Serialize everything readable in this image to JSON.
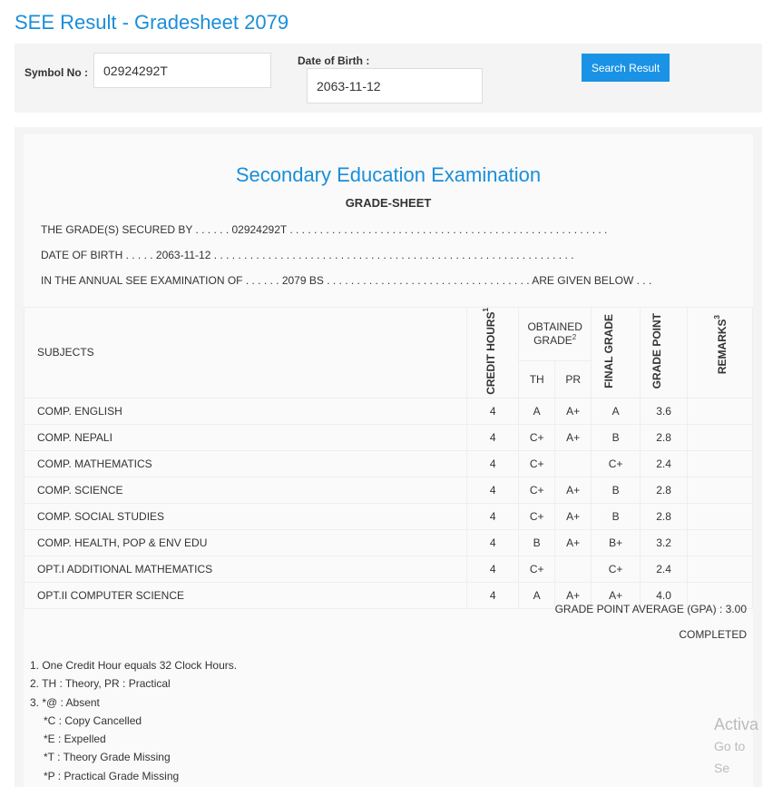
{
  "title": "SEE Result - Gradesheet 2079",
  "search": {
    "symbol_label": "Symbol No :",
    "symbol_value": "02924292T",
    "dob_label": "Date of Birth :",
    "dob_value": "2063-11-12",
    "button": "Search Result"
  },
  "sheet": {
    "exam": "Secondary Education Examination",
    "heading": "GRADE-SHEET",
    "line1": "THE GRADE(S) SECURED BY . . . . . . 02924292T . . . . . . . . . . . . . . . . . . . . . . . . . . . . . . . . . . . . . . . . . . . . . . . . . . . . .",
    "line2": "DATE OF BIRTH . . . . . 2063-11-12 . . . . . . . . . . . . . . . . . . . . . . . . . . . . . . . . . . . . . . . . . . . . . . . . . . . . . . . . . . . .",
    "line3": "IN THE ANNUAL SEE EXAMINATION OF . . . . . . 2079 BS . . . . . . . . . . . . . . . . . . . . . . . . . . . . . . . . . . ARE GIVEN BELOW . . .",
    "headers": {
      "subjects": "SUBJECTS",
      "credit": "CREDIT HOURS",
      "credit_sup": "1",
      "obtained": "OBTAINED GRADE",
      "obtained_sup": "2",
      "th": "TH",
      "pr": "PR",
      "final": "FINAL GRADE",
      "point": "GRADE POINT",
      "remarks": "REMARKS",
      "remarks_sup": "3"
    },
    "rows": [
      {
        "subject": "COMP. ENGLISH",
        "credit": "4",
        "th": "A",
        "pr": "A+",
        "final": "A",
        "point": "3.6",
        "remarks": ""
      },
      {
        "subject": "COMP. NEPALI",
        "credit": "4",
        "th": "C+",
        "pr": "A+",
        "final": "B",
        "point": "2.8",
        "remarks": ""
      },
      {
        "subject": "COMP. MATHEMATICS",
        "credit": "4",
        "th": "C+",
        "pr": "",
        "final": "C+",
        "point": "2.4",
        "remarks": ""
      },
      {
        "subject": "COMP. SCIENCE",
        "credit": "4",
        "th": "C+",
        "pr": "A+",
        "final": "B",
        "point": "2.8",
        "remarks": ""
      },
      {
        "subject": "COMP. SOCIAL STUDIES",
        "credit": "4",
        "th": "C+",
        "pr": "A+",
        "final": "B",
        "point": "2.8",
        "remarks": ""
      },
      {
        "subject": "COMP. HEALTH, POP & ENV EDU",
        "credit": "4",
        "th": "B",
        "pr": "A+",
        "final": "B+",
        "point": "3.2",
        "remarks": ""
      },
      {
        "subject": "OPT.I ADDITIONAL MATHEMATICS",
        "credit": "4",
        "th": "C+",
        "pr": "",
        "final": "C+",
        "point": "2.4",
        "remarks": ""
      },
      {
        "subject": "OPT.II COMPUTER SCIENCE",
        "credit": "4",
        "th": "A",
        "pr": "A+",
        "final": "A+",
        "point": "4.0",
        "remarks": ""
      }
    ],
    "gpa": "GRADE POINT AVERAGE (GPA) : 3.00",
    "status": "COMPLETED",
    "notes": [
      "1. One Credit Hour equals 32 Clock Hours.",
      "2. TH : Theory, PR : Practical",
      "3. *@ : Absent",
      "*C : Copy Cancelled",
      "*E : Expelled",
      "*T : Theory Grade Missing",
      "*P : Practical Grade Missing"
    ]
  },
  "watermark": {
    "line1": "Activa",
    "line2": "Go to Se"
  }
}
